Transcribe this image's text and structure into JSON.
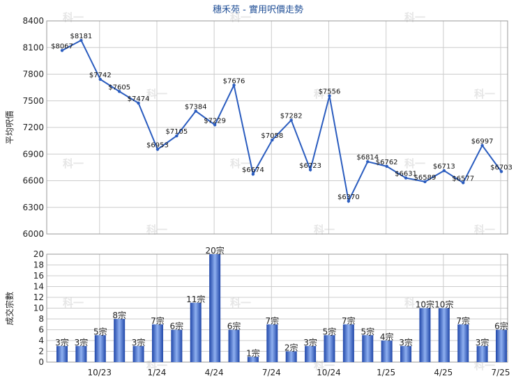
{
  "title": "穗禾苑 - 實用呎價走勢",
  "watermark": "科一",
  "colors": {
    "line": "#2a5cbf",
    "bar_dark": "#1f46a8",
    "bar_light": "#8fb0f0",
    "grid": "#cccccc",
    "title": "#1f4e96"
  },
  "chart_data": [
    {
      "type": "line",
      "ylabel": "平均呎價",
      "ylim": [
        6000,
        8400
      ],
      "yticks": [
        6000,
        6300,
        6600,
        6900,
        7200,
        7500,
        7800,
        8100,
        8400
      ],
      "grid": true,
      "values": [
        8067,
        8181,
        7742,
        7605,
        7474,
        6953,
        7105,
        7384,
        7229,
        7676,
        6674,
        7058,
        7282,
        6723,
        7556,
        6370,
        6814,
        6762,
        6631,
        6589,
        6713,
        6577,
        6997,
        6703
      ],
      "labels": [
        "$8067",
        "$8181",
        "$7742",
        "$7605",
        "$7474",
        "$6953",
        "$7105",
        "$7384",
        "$7229",
        "$7676",
        "$6674",
        "$7058",
        "$7282",
        "$6723",
        "$7556",
        "$6370",
        "$6814",
        "$6762",
        "$6631",
        "$6589",
        "$6713",
        "$6577",
        "$6997",
        "$6703"
      ]
    },
    {
      "type": "bar",
      "ylabel": "成交宗數",
      "ylim": [
        0,
        20
      ],
      "yticks": [
        0,
        2,
        4,
        6,
        8,
        10,
        12,
        14,
        16,
        18,
        20
      ],
      "grid": true,
      "values": [
        3,
        3,
        5,
        8,
        3,
        7,
        6,
        11,
        20,
        6,
        1,
        7,
        2,
        3,
        5,
        7,
        5,
        4,
        3,
        10,
        10,
        7,
        3,
        6
      ],
      "labels": [
        "3宗",
        "3宗",
        "5宗",
        "8宗",
        "3宗",
        "7宗",
        "6宗",
        "11宗",
        "20宗",
        "6宗",
        "1宗",
        "7宗",
        "2宗",
        "3宗",
        "5宗",
        "7宗",
        "5宗",
        "4宗",
        "3宗",
        "10宗",
        "10宗",
        "7宗",
        "3宗",
        "6宗"
      ]
    }
  ],
  "x_axis": {
    "ticks": [
      {
        "label": "10/23",
        "index": 2
      },
      {
        "label": "1/24",
        "index": 5
      },
      {
        "label": "4/24",
        "index": 8
      },
      {
        "label": "7/24",
        "index": 11
      },
      {
        "label": "10/24",
        "index": 14
      },
      {
        "label": "1/25",
        "index": 17
      },
      {
        "label": "4/25",
        "index": 20
      },
      {
        "label": "7/25",
        "index": 23
      }
    ]
  }
}
